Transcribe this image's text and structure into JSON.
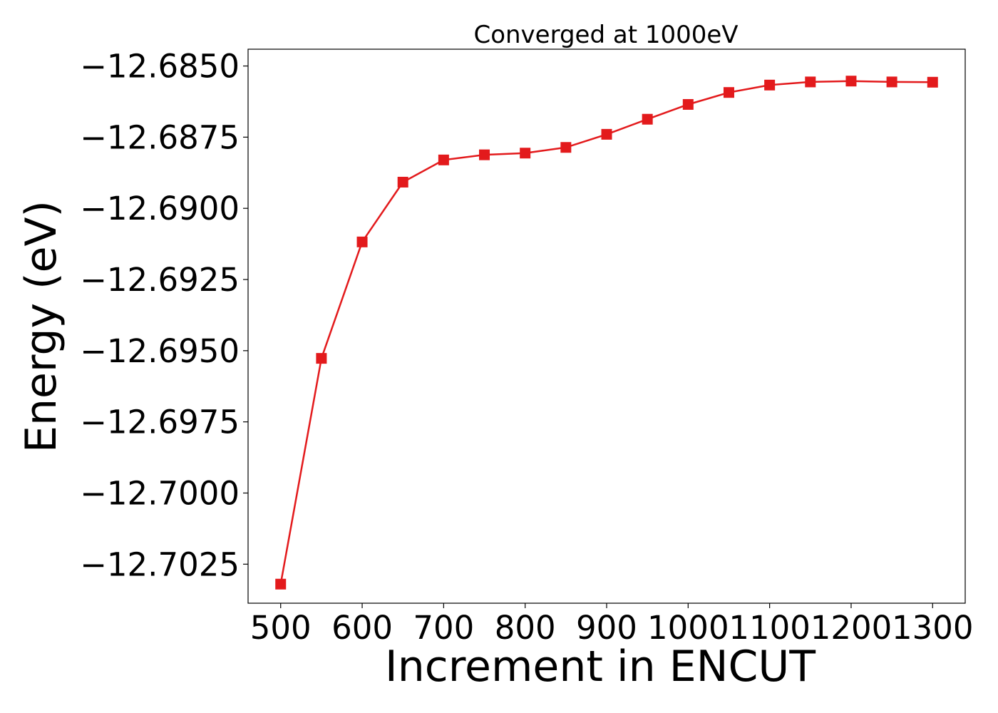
{
  "chart_data": {
    "type": "line",
    "title": "Converged at 1000eV",
    "xlabel": "Increment in ENCUT",
    "ylabel": "Energy (eV)",
    "x": [
      500,
      550,
      600,
      650,
      700,
      750,
      800,
      850,
      900,
      950,
      1000,
      1050,
      1100,
      1150,
      1200,
      1250,
      1300
    ],
    "series": [
      {
        "values": [
          -12.7032,
          -12.69527,
          -12.69118,
          -12.68908,
          -12.6883,
          -12.68812,
          -12.68806,
          -12.68786,
          -12.6874,
          -12.68687,
          -12.68635,
          -12.68593,
          -12.68567,
          -12.68556,
          -12.68553,
          -12.68556,
          -12.68557
        ],
        "color": "#e31a1c",
        "marker": "square"
      }
    ],
    "xticks": [
      500,
      600,
      700,
      800,
      900,
      1000,
      1100,
      1200,
      1300
    ],
    "xtick_labels": [
      "500",
      "600",
      "700",
      "800",
      "900",
      "1000",
      "1100",
      "1200",
      "1300"
    ],
    "yticks": [
      -12.685,
      -12.6875,
      -12.69,
      -12.6925,
      -12.695,
      -12.6975,
      -12.7,
      -12.7025
    ],
    "ytick_labels": [
      "−12.6850",
      "−12.6875",
      "−12.6900",
      "−12.6925",
      "−12.6950",
      "−12.6975",
      "−12.7000",
      "−12.7025"
    ],
    "xlim": [
      460,
      1340
    ],
    "ylim": [
      -12.70387,
      -12.68441
    ],
    "grid": false
  }
}
